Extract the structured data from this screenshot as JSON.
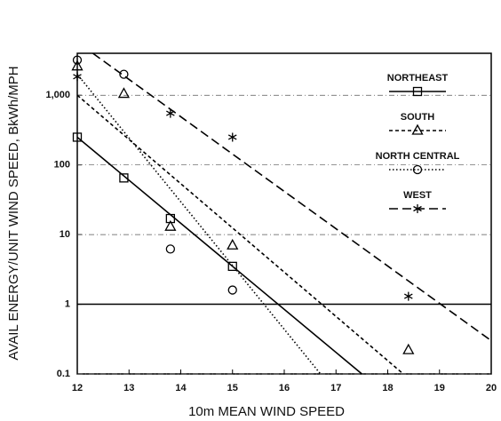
{
  "chart_data": {
    "type": "scatter",
    "x_label": "10m MEAN WIND SPEED",
    "y_label": "AVAIL ENERGY/UNIT WIND SPEED, BkWh/MPH",
    "log_y": true,
    "grid": true,
    "hline": 1,
    "xlim": [
      12,
      20
    ],
    "ylim": [
      0.1,
      4000
    ],
    "xticks": [
      12,
      13,
      14,
      15,
      16,
      17,
      18,
      19,
      20
    ],
    "yticks": [
      0.1,
      1,
      10,
      100,
      {
        "value": 1000,
        "label": "1,000"
      }
    ],
    "legend": "upper right",
    "series": [
      {
        "name": "NORTHEAST",
        "marker": "square",
        "dash": "solid",
        "color": "#000000",
        "x": [
          12,
          12.9,
          13.8,
          15
        ],
        "values": [
          250,
          65,
          17,
          3.5
        ],
        "fit": {
          "x": [
            12,
            17.5
          ],
          "values": [
            250,
            0.1
          ]
        }
      },
      {
        "name": "SOUTH",
        "marker": "triangle",
        "dash": "short",
        "color": "#000000",
        "x": [
          12,
          12.9,
          13.8,
          15,
          18.4
        ],
        "values": [
          2600,
          1050,
          13,
          7,
          0.22
        ],
        "fit": {
          "x": [
            12,
            18.3
          ],
          "values": [
            1000,
            0.1
          ]
        }
      },
      {
        "name": "NORTH CENTRAL",
        "marker": "circle",
        "dash": "dotted",
        "color": "#000000",
        "x": [
          12,
          12.9,
          13.8,
          15
        ],
        "values": [
          3200,
          2000,
          6.2,
          1.6
        ],
        "fit": {
          "x": [
            12,
            16.7
          ],
          "values": [
            2000,
            0.1
          ]
        }
      },
      {
        "name": "WEST",
        "marker": "asterisk",
        "dash": "long",
        "color": "#000000",
        "x": [
          12,
          13.8,
          15,
          18.4
        ],
        "values": [
          1850,
          550,
          250,
          1.3
        ],
        "fit": {
          "x": [
            12.3,
            20
          ],
          "values": [
            4000,
            0.3
          ]
        }
      }
    ]
  }
}
